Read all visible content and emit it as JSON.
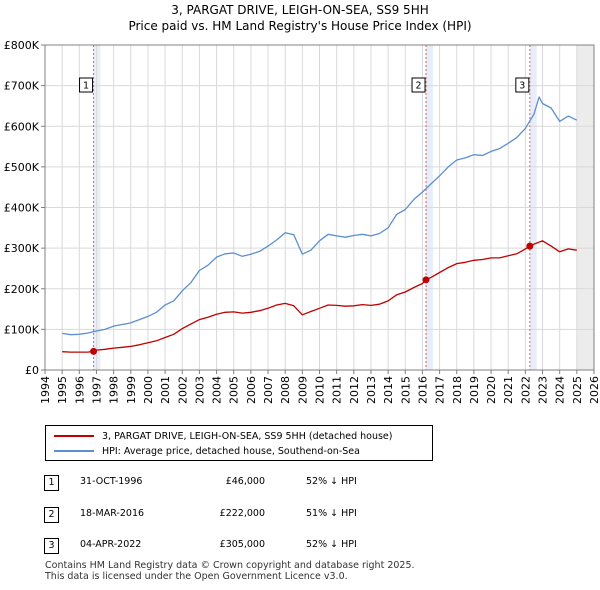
{
  "title_line1": "3, PARGAT DRIVE, LEIGH-ON-SEA, SS9 5HH",
  "title_line2": "Price paid vs. HM Land Registry's House Price Index (HPI)",
  "colors": {
    "hpi": "#5b8fd0",
    "price": "#c00000",
    "grid": "#d9d9d9",
    "sale_band": "#d8e2f5",
    "future_band": "#ececec"
  },
  "chart_data": {
    "type": "line",
    "xlim": [
      1994,
      2026
    ],
    "ylim": [
      0,
      800000
    ],
    "y_ticks": [
      0,
      100000,
      200000,
      300000,
      400000,
      500000,
      600000,
      700000,
      800000
    ],
    "y_tick_labels": [
      "£0",
      "£100K",
      "£200K",
      "£300K",
      "£400K",
      "£500K",
      "£600K",
      "£700K",
      "£800K"
    ],
    "x_ticks": [
      1994,
      1995,
      1996,
      1997,
      1998,
      1999,
      2000,
      2001,
      2002,
      2003,
      2004,
      2005,
      2006,
      2007,
      2008,
      2009,
      2010,
      2011,
      2012,
      2013,
      2014,
      2015,
      2016,
      2017,
      2018,
      2019,
      2020,
      2021,
      2022,
      2023,
      2024,
      2025,
      2026
    ],
    "future_start": 2025.0,
    "series": [
      {
        "name": "HPI: Average price, detached house, Southend-on-Sea",
        "x": [
          1995.0,
          1995.5,
          1996.0,
          1996.5,
          1997.0,
          1997.5,
          1998.0,
          1998.5,
          1999.0,
          1999.5,
          2000.0,
          2000.5,
          2001.0,
          2001.5,
          2002.0,
          2002.5,
          2003.0,
          2003.5,
          2004.0,
          2004.5,
          2005.0,
          2005.5,
          2006.0,
          2006.5,
          2007.0,
          2007.5,
          2008.0,
          2008.5,
          2009.0,
          2009.5,
          2010.0,
          2010.5,
          2011.0,
          2011.5,
          2012.0,
          2012.5,
          2013.0,
          2013.5,
          2014.0,
          2014.5,
          2015.0,
          2015.5,
          2016.0,
          2016.5,
          2017.0,
          2017.5,
          2018.0,
          2018.5,
          2019.0,
          2019.5,
          2020.0,
          2020.5,
          2021.0,
          2021.5,
          2022.0,
          2022.5,
          2022.8,
          2023.0,
          2023.5,
          2024.0,
          2024.5,
          2025.0
        ],
        "y": [
          90000,
          87000,
          88000,
          91000,
          96000,
          100000,
          108000,
          112000,
          116000,
          124000,
          132000,
          142000,
          160000,
          170000,
          195000,
          215000,
          245000,
          258000,
          278000,
          286000,
          288000,
          280000,
          285000,
          292000,
          305000,
          320000,
          338000,
          333000,
          285000,
          295000,
          318000,
          334000,
          330000,
          327000,
          331000,
          334000,
          330000,
          336000,
          350000,
          383000,
          395000,
          420000,
          438000,
          458000,
          478000,
          500000,
          517000,
          522000,
          530000,
          528000,
          538000,
          545000,
          558000,
          572000,
          595000,
          630000,
          672000,
          656000,
          645000,
          612000,
          625000,
          615000
        ]
      },
      {
        "name": "3, PARGAT DRIVE, LEIGH-ON-SEA, SS9 5HH (detached house)",
        "x": [
          1995.0,
          1995.5,
          1996.0,
          1996.5,
          1996.83,
          1997.0,
          1997.5,
          1998.0,
          1998.5,
          1999.0,
          1999.5,
          2000.0,
          2000.5,
          2001.0,
          2001.5,
          2002.0,
          2002.5,
          2003.0,
          2003.5,
          2004.0,
          2004.5,
          2005.0,
          2005.5,
          2006.0,
          2006.5,
          2007.0,
          2007.5,
          2008.0,
          2008.5,
          2009.0,
          2009.5,
          2010.0,
          2010.5,
          2011.0,
          2011.5,
          2012.0,
          2012.5,
          2013.0,
          2013.5,
          2014.0,
          2014.5,
          2015.0,
          2015.5,
          2016.0,
          2016.21,
          2016.5,
          2017.0,
          2017.5,
          2018.0,
          2018.5,
          2019.0,
          2019.5,
          2020.0,
          2020.5,
          2021.0,
          2021.5,
          2022.0,
          2022.26,
          2022.5,
          2023.0,
          2023.5,
          2024.0,
          2024.5,
          2025.0
        ],
        "y": [
          45000,
          44000,
          44000,
          44000,
          46000,
          49000,
          51000,
          54000,
          56000,
          58000,
          62000,
          67000,
          72000,
          80000,
          88000,
          102000,
          113000,
          124000,
          130000,
          137000,
          142000,
          143000,
          140000,
          142000,
          146000,
          152000,
          160000,
          164000,
          158000,
          136000,
          144000,
          152000,
          160000,
          159000,
          157000,
          158000,
          161000,
          159000,
          162000,
          170000,
          185000,
          192000,
          203000,
          213000,
          222000,
          228000,
          240000,
          252000,
          262000,
          265000,
          270000,
          272000,
          276000,
          276000,
          281000,
          286000,
          298000,
          305000,
          310000,
          318000,
          305000,
          291000,
          298000,
          295000
        ]
      }
    ],
    "sales": [
      {
        "label": "1",
        "x": 1996.83,
        "y": 46000
      },
      {
        "label": "2",
        "x": 2016.21,
        "y": 222000
      },
      {
        "label": "3",
        "x": 2022.26,
        "y": 305000
      }
    ]
  },
  "legend": {
    "price_label": "3, PARGAT DRIVE, LEIGH-ON-SEA, SS9 5HH (detached house)",
    "hpi_label": "HPI: Average price, detached house, Southend-on-Sea"
  },
  "table": [
    {
      "num": "1",
      "date": "31-OCT-1996",
      "price": "£46,000",
      "delta": "52% ↓ HPI"
    },
    {
      "num": "2",
      "date": "18-MAR-2016",
      "price": "£222,000",
      "delta": "51% ↓ HPI"
    },
    {
      "num": "3",
      "date": "04-APR-2022",
      "price": "£305,000",
      "delta": "52% ↓ HPI"
    }
  ],
  "footer": {
    "line1": "Contains HM Land Registry data © Crown copyright and database right 2025.",
    "line2": "This data is licensed under the Open Government Licence v3.0."
  }
}
